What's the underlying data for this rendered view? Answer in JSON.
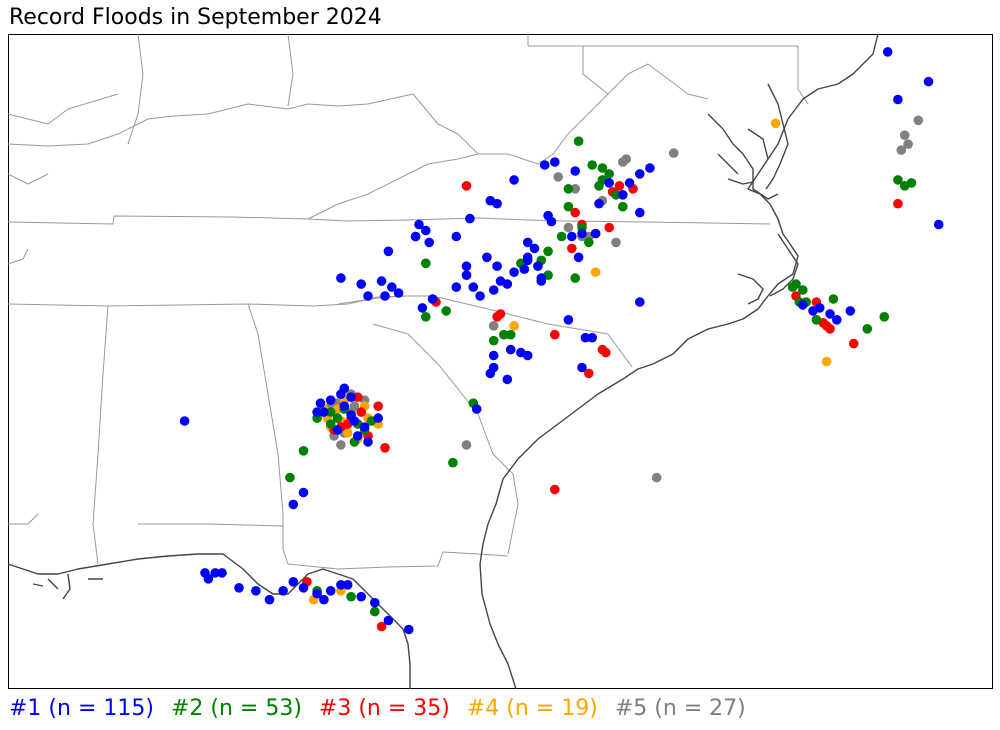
{
  "title": "Record Floods in September 2024",
  "colors": {
    "rank1": "#0000ff",
    "rank2": "#008000",
    "rank3": "#ff0000",
    "rank4": "#ffa500",
    "rank5": "#808080",
    "state_border": "#999999",
    "coastline": "#444444"
  },
  "legend": [
    {
      "label": "#1 (n = 115)",
      "rank": 1
    },
    {
      "label": "#2 (n = 53)",
      "rank": 2
    },
    {
      "label": "#3 (n = 35)",
      "rank": 3
    },
    {
      "label": "#4 (n = 19)",
      "rank": 4
    },
    {
      "label": "#5 (n = 27)",
      "rank": 5
    }
  ],
  "chart_data": {
    "type": "scatter",
    "extent": {
      "lon": [
        -89.5,
        -75.0
      ],
      "lat": [
        29.0,
        40.0
      ]
    },
    "series": [
      {
        "name": "#1 (n = 115)",
        "rank": 1,
        "points": [
          [
            -86.9,
            33.5
          ],
          [
            -83.9,
            36.35
          ],
          [
            -83.5,
            36.6
          ],
          [
            -83.5,
            36.6
          ],
          [
            -83.45,
            36.8
          ],
          [
            -83.35,
            36.7
          ],
          [
            -83.3,
            36.5
          ],
          [
            -82.9,
            36.6
          ],
          [
            -82.7,
            36.9
          ],
          [
            -82.4,
            37.2
          ],
          [
            -82.3,
            37.15
          ],
          [
            -82.05,
            37.55
          ],
          [
            -81.6,
            37.8
          ],
          [
            -81.15,
            37.7
          ],
          [
            -80.65,
            37.5
          ],
          [
            -80.45,
            37.3
          ],
          [
            -80.2,
            37.0
          ],
          [
            -80.85,
            36.65
          ],
          [
            -81.05,
            36.65
          ],
          [
            -81.2,
            36.6
          ],
          [
            -81.5,
            36.85
          ],
          [
            -81.55,
            36.95
          ],
          [
            -81.75,
            36.4
          ],
          [
            -81.85,
            36.2
          ],
          [
            -82.3,
            36.1
          ],
          [
            -82.75,
            35.95
          ],
          [
            -82.65,
            35.75
          ],
          [
            -82.55,
            35.6
          ],
          [
            -82.35,
            35.7
          ],
          [
            -82.25,
            35.85
          ],
          [
            -82.05,
            36.0
          ],
          [
            -82.15,
            35.8
          ],
          [
            -82.45,
            36.25
          ],
          [
            -82.75,
            36.1
          ],
          [
            -82.9,
            35.75
          ],
          [
            -83.25,
            35.55
          ],
          [
            -83.4,
            35.4
          ],
          [
            -83.75,
            35.65
          ],
          [
            -83.85,
            35.75
          ],
          [
            -83.95,
            35.6
          ],
          [
            -84.0,
            35.85
          ],
          [
            -84.2,
            35.6
          ],
          [
            -84.3,
            35.8
          ],
          [
            -84.6,
            35.9
          ],
          [
            -81.65,
            35.9
          ],
          [
            -81.65,
            35.85
          ],
          [
            -81.85,
            36.5
          ],
          [
            -81.85,
            36.25
          ],
          [
            -81.7,
            36.1
          ],
          [
            -81.1,
            36.25
          ],
          [
            -80.2,
            35.5
          ],
          [
            -81.9,
            36.05
          ],
          [
            -81.25,
            35.2
          ],
          [
            -81.0,
            34.9
          ],
          [
            -82.1,
            34.7
          ],
          [
            -82.35,
            34.6
          ],
          [
            -82.4,
            34.3
          ],
          [
            -82.35,
            34.4
          ],
          [
            -82.15,
            34.2
          ],
          [
            -81.85,
            34.6
          ],
          [
            -81.95,
            34.65
          ],
          [
            -80.9,
            34.9
          ],
          [
            -81.05,
            34.4
          ],
          [
            -82.6,
            33.7
          ],
          [
            -84.9,
            33.8
          ],
          [
            -84.85,
            33.65
          ],
          [
            -84.75,
            33.85
          ],
          [
            -84.6,
            33.95
          ],
          [
            -84.55,
            33.75
          ],
          [
            -84.45,
            33.6
          ],
          [
            -84.4,
            33.5
          ],
          [
            -84.25,
            33.4
          ],
          [
            -84.05,
            33.55
          ],
          [
            -84.35,
            33.25
          ],
          [
            -84.2,
            33.15
          ],
          [
            -84.45,
            33.9
          ],
          [
            -84.65,
            33.35
          ],
          [
            -84.95,
            33.65
          ],
          [
            -84.55,
            34.05
          ],
          [
            -85.15,
            32.3
          ],
          [
            -85.3,
            32.1
          ],
          [
            -86.6,
            30.95
          ],
          [
            -86.55,
            30.85
          ],
          [
            -86.45,
            30.95
          ],
          [
            -86.35,
            30.95
          ],
          [
            -86.1,
            30.7
          ],
          [
            -85.85,
            30.65
          ],
          [
            -85.65,
            30.5
          ],
          [
            -85.45,
            30.65
          ],
          [
            -85.3,
            30.8
          ],
          [
            -85.15,
            30.7
          ],
          [
            -84.95,
            30.6
          ],
          [
            -84.85,
            30.5
          ],
          [
            -84.75,
            30.65
          ],
          [
            -84.6,
            30.75
          ],
          [
            -84.5,
            30.75
          ],
          [
            -84.3,
            30.55
          ],
          [
            -84.1,
            30.45
          ],
          [
            -83.9,
            30.15
          ],
          [
            -83.6,
            30.0
          ],
          [
            -77.8,
            35.45
          ],
          [
            -77.65,
            35.35
          ],
          [
            -77.55,
            35.4
          ],
          [
            -77.4,
            35.3
          ],
          [
            -77.3,
            35.2
          ],
          [
            -77.1,
            35.35
          ],
          [
            -75.8,
            36.8
          ],
          [
            -76.4,
            38.9
          ],
          [
            -75.95,
            39.2
          ],
          [
            -76.55,
            39.7
          ],
          [
            -80.8,
            37.15
          ],
          [
            -80.35,
            37.5
          ],
          [
            -80.2,
            37.65
          ],
          [
            -80.05,
            37.75
          ],
          [
            -81.45,
            37.85
          ]
        ]
      },
      {
        "name": "#2 (n = 53)",
        "rank": 2,
        "points": [
          [
            -81.1,
            38.2
          ],
          [
            -80.9,
            37.8
          ],
          [
            -80.75,
            37.75
          ],
          [
            -80.65,
            37.65
          ],
          [
            -80.8,
            37.45
          ],
          [
            -81.25,
            37.1
          ],
          [
            -81.05,
            36.75
          ],
          [
            -81.35,
            36.6
          ],
          [
            -81.55,
            36.35
          ],
          [
            -81.65,
            36.2
          ],
          [
            -81.15,
            35.9
          ],
          [
            -81.95,
            36.15
          ],
          [
            -83.35,
            36.15
          ],
          [
            -83.25,
            35.55
          ],
          [
            -83.05,
            35.35
          ],
          [
            -82.35,
            34.85
          ],
          [
            -82.1,
            34.95
          ],
          [
            -82.2,
            34.95
          ],
          [
            -82.65,
            33.8
          ],
          [
            -82.95,
            32.8
          ],
          [
            -84.55,
            33.7
          ],
          [
            -84.65,
            33.55
          ],
          [
            -84.75,
            33.65
          ],
          [
            -84.4,
            33.15
          ],
          [
            -84.35,
            33.45
          ],
          [
            -84.15,
            33.5
          ],
          [
            -84.95,
            33.55
          ],
          [
            -84.75,
            33.45
          ],
          [
            -84.25,
            33.35
          ],
          [
            -85.15,
            33.0
          ],
          [
            -85.35,
            32.55
          ],
          [
            -84.95,
            30.65
          ],
          [
            -84.45,
            30.55
          ],
          [
            -84.1,
            30.3
          ],
          [
            -77.85,
            35.5
          ],
          [
            -77.75,
            35.5
          ],
          [
            -77.35,
            35.55
          ],
          [
            -77.6,
            35.2
          ],
          [
            -76.6,
            35.25
          ],
          [
            -76.85,
            35.05
          ],
          [
            -76.2,
            37.5
          ],
          [
            -76.4,
            37.55
          ],
          [
            -76.3,
            37.45
          ],
          [
            -80.55,
            37.3
          ],
          [
            -80.45,
            37.1
          ],
          [
            -80.75,
            37.55
          ],
          [
            -81.25,
            37.4
          ],
          [
            -81.55,
            35.95
          ],
          [
            -83.35,
            35.25
          ],
          [
            -80.95,
            36.5
          ],
          [
            -77.95,
            35.75
          ],
          [
            -77.9,
            35.8
          ],
          [
            -77.8,
            35.7
          ]
        ]
      },
      {
        "name": "#3 (n = 35)",
        "rank": 3,
        "points": [
          [
            -82.75,
            37.45
          ],
          [
            -81.15,
            37.0
          ],
          [
            -81.05,
            36.8
          ],
          [
            -80.65,
            36.75
          ],
          [
            -80.6,
            37.35
          ],
          [
            -82.25,
            35.3
          ],
          [
            -84.45,
            33.55
          ],
          [
            -84.35,
            33.9
          ],
          [
            -84.5,
            33.45
          ],
          [
            -84.2,
            33.25
          ],
          [
            -83.95,
            33.05
          ],
          [
            -84.3,
            33.65
          ],
          [
            -84.05,
            33.75
          ],
          [
            -81.45,
            34.95
          ],
          [
            -80.75,
            34.7
          ],
          [
            -80.7,
            34.65
          ],
          [
            -80.95,
            34.3
          ],
          [
            -81.45,
            32.35
          ],
          [
            -85.1,
            30.8
          ],
          [
            -84.0,
            30.05
          ],
          [
            -77.9,
            35.6
          ],
          [
            -77.5,
            35.15
          ],
          [
            -77.45,
            35.1
          ],
          [
            -77.4,
            35.05
          ],
          [
            -77.05,
            34.8
          ],
          [
            -76.4,
            37.15
          ],
          [
            -84.6,
            33.4
          ],
          [
            -80.85,
            36.65
          ],
          [
            -83.2,
            35.5
          ],
          [
            -81.2,
            36.4
          ],
          [
            -84.7,
            33.35
          ],
          [
            -77.6,
            35.5
          ],
          [
            -80.5,
            37.45
          ],
          [
            -80.3,
            37.4
          ],
          [
            -82.3,
            35.25
          ]
        ]
      },
      {
        "name": "#4 (n = 19)",
        "rank": 4,
        "points": [
          [
            -78.2,
            38.5
          ],
          [
            -80.85,
            36.0
          ],
          [
            -82.05,
            35.1
          ],
          [
            -77.45,
            34.5
          ],
          [
            -84.35,
            33.2
          ],
          [
            -84.5,
            33.3
          ],
          [
            -84.75,
            33.4
          ],
          [
            -84.2,
            33.55
          ],
          [
            -84.15,
            33.5
          ],
          [
            -84.85,
            33.7
          ],
          [
            -84.25,
            33.75
          ],
          [
            -84.6,
            33.5
          ],
          [
            -84.05,
            33.45
          ],
          [
            -84.55,
            33.85
          ],
          [
            -84.8,
            33.55
          ],
          [
            -84.35,
            33.45
          ],
          [
            -84.65,
            33.7
          ],
          [
            -84.6,
            30.65
          ],
          [
            -85.0,
            30.5
          ]
        ]
      },
      {
        "name": "#5 (n = 27)",
        "rank": 5,
        "points": [
          [
            -80.4,
            37.9
          ],
          [
            -80.45,
            37.85
          ],
          [
            -79.7,
            38.0
          ],
          [
            -81.4,
            37.6
          ],
          [
            -81.15,
            37.4
          ],
          [
            -80.75,
            37.2
          ],
          [
            -81.05,
            36.6
          ],
          [
            -81.25,
            36.75
          ],
          [
            -80.95,
            36.6
          ],
          [
            -80.55,
            36.5
          ],
          [
            -82.35,
            35.1
          ],
          [
            -84.25,
            33.85
          ],
          [
            -84.45,
            33.95
          ],
          [
            -84.75,
            33.75
          ],
          [
            -84.45,
            33.65
          ],
          [
            -84.6,
            33.1
          ],
          [
            -84.7,
            33.25
          ],
          [
            -84.85,
            33.65
          ],
          [
            -82.75,
            33.1
          ],
          [
            -79.95,
            32.55
          ],
          [
            -76.1,
            38.55
          ],
          [
            -76.3,
            38.3
          ],
          [
            -76.25,
            38.15
          ],
          [
            -76.35,
            38.05
          ],
          [
            -84.55,
            33.3
          ],
          [
            -84.65,
            33.8
          ],
          [
            -84.4,
            33.75
          ]
        ]
      }
    ]
  }
}
